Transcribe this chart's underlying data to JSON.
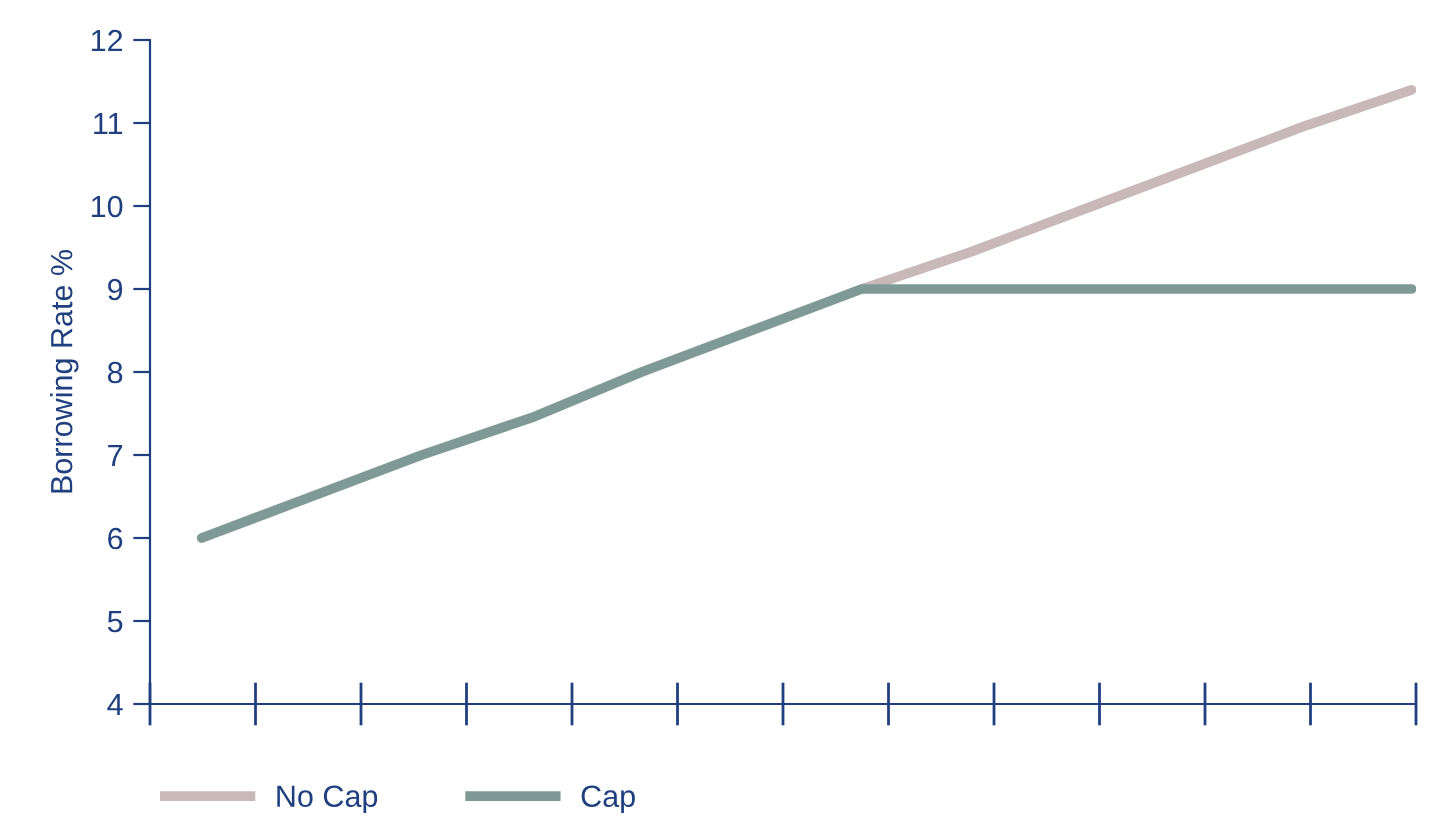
{
  "chart_data": {
    "type": "line",
    "ylabel": "Borrowing Rate %",
    "categories": [
      null,
      null,
      null,
      null,
      null,
      null,
      null,
      null,
      null,
      null,
      null,
      null
    ],
    "series": [
      {
        "name": "No Cap",
        "color": "#c8b8b8",
        "values": [
          null,
          null,
          null,
          null,
          null,
          null,
          9,
          9.45,
          9.95,
          10.45,
          10.95,
          11.4
        ]
      },
      {
        "name": "Cap",
        "color": "#7f9996",
        "values": [
          6,
          6.5,
          7,
          7.45,
          8,
          8.5,
          9,
          9,
          9,
          9,
          9,
          9
        ]
      }
    ],
    "ylim": [
      4,
      12
    ],
    "yticks": [
      4,
      5,
      6,
      7,
      8,
      9,
      10,
      11,
      12
    ],
    "grid": false,
    "legend": "bottom",
    "marker": "none",
    "line_style": "solid"
  }
}
